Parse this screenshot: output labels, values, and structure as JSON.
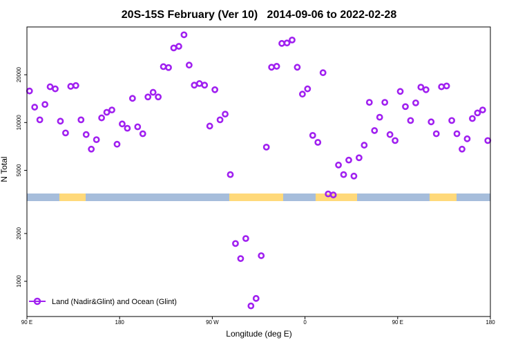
{
  "chart_data": {
    "type": "scatter",
    "title": "20S-15S February (Ver 10)   2014-09-06 to 2022-02-28",
    "xlabel": "Longitude (deg E)",
    "ylabel": "N Total",
    "xlim": [
      90,
      540
    ],
    "ylim": [
      600,
      40000
    ],
    "y_scale": "log",
    "x_ticks": [
      {
        "value": 90,
        "label": "90 E"
      },
      {
        "value": 180,
        "label": "180"
      },
      {
        "value": 270,
        "label": "90 W"
      },
      {
        "value": 360,
        "label": "0"
      },
      {
        "value": 450,
        "label": "90 E"
      },
      {
        "value": 540,
        "label": "180"
      }
    ],
    "y_ticks": [
      {
        "value": 1000,
        "label": "1000"
      },
      {
        "value": 2000,
        "label": "2000"
      },
      {
        "value": 5000,
        "label": "5000"
      },
      {
        "value": 10000,
        "label": "10000"
      },
      {
        "value": 20000,
        "label": "20000"
      }
    ],
    "grid": false,
    "legend": {
      "position": "bottom-left",
      "entries": [
        "Land (Nadir&Glint) and Ocean (Glint)"
      ]
    },
    "colors": {
      "series": "#a020f0",
      "ocean": "#a6bddb",
      "land": "#ffd97a"
    },
    "series": [
      {
        "name": "Land (Nadir&Glint) and Ocean (Glint)",
        "x": [
          92.5,
          97.5,
          102.5,
          107.5,
          112.5,
          117.5,
          122.5,
          127.5,
          132.5,
          137.5,
          142.5,
          147.5,
          152.5,
          157.5,
          162.5,
          167.5,
          172.5,
          177.5,
          182.5,
          187.5,
          192.5,
          197.5,
          202.5,
          207.5,
          212.5,
          217.5,
          222.5,
          227.5,
          232.5,
          237.5,
          242.5,
          247.5,
          252.5,
          257.5,
          262.5,
          267.5,
          272.5,
          277.5,
          282.5,
          287.5,
          292.5,
          297.5,
          302.5,
          307.5,
          312.5,
          317.5,
          322.5,
          327.5,
          332.5,
          337.5,
          342.5,
          347.5,
          352.5,
          357.5,
          362.5,
          367.5,
          372.5,
          377.5,
          382.5,
          387.5,
          392.5,
          397.5,
          402.5,
          407.5,
          412.5,
          417.5,
          422.5,
          427.5,
          432.5,
          437.5,
          442.5,
          447.5,
          452.5,
          457.5,
          462.5,
          467.5,
          472.5,
          477.5,
          482.5,
          487.5,
          492.5,
          497.5,
          502.5,
          507.5,
          512.5,
          517.5,
          522.5,
          527.5,
          532.5,
          537.5
        ],
        "y": [
          15800,
          12500,
          10400,
          13000,
          16800,
          16300,
          10200,
          8600,
          16900,
          17100,
          10400,
          8400,
          6800,
          7800,
          10700,
          11600,
          12000,
          7300,
          9800,
          9200,
          14200,
          9400,
          8500,
          14500,
          15500,
          14500,
          22500,
          22200,
          29500,
          30200,
          35700,
          23000,
          17200,
          17600,
          17200,
          9500,
          16100,
          10400,
          11300,
          4700,
          1730,
          1390,
          1860,
          700,
          780,
          1450,
          7000,
          22300,
          22600,
          31500,
          31700,
          33100,
          22300,
          15100,
          16300,
          8300,
          7500,
          20600,
          3550,
          3500,
          5400,
          4700,
          5800,
          4600,
          6000,
          7200,
          13400,
          8900,
          10800,
          13400,
          8400,
          7700,
          15700,
          12600,
          10300,
          13300,
          16700,
          16100,
          10100,
          8500,
          16800,
          17000,
          10300,
          8500,
          6800,
          7900,
          10600,
          11500,
          12000,
          7700
        ]
      }
    ]
  }
}
